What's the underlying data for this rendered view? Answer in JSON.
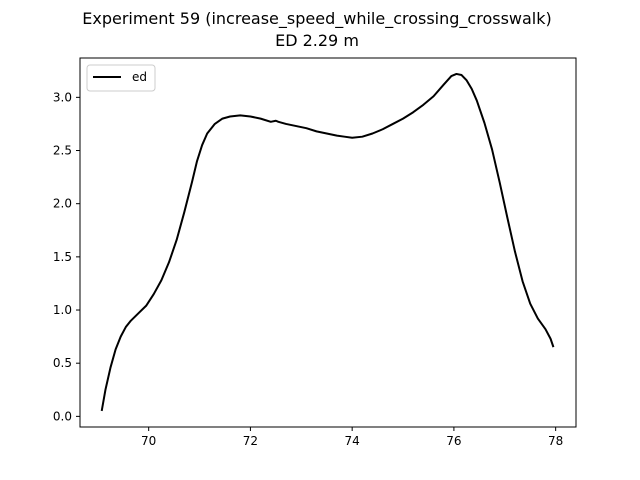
{
  "chart_data": {
    "type": "line",
    "title": "Experiment 59 (increase_speed_while_crossing_crosswalk)",
    "subtitle": "ED 2.29 m",
    "xlabel": "",
    "ylabel": "",
    "xlim": [
      68.65,
      78.4
    ],
    "ylim": [
      -0.1,
      3.37
    ],
    "xticks": [
      70,
      72,
      74,
      76,
      78
    ],
    "yticks": [
      0.0,
      0.5,
      1.0,
      1.5,
      2.0,
      2.5,
      3.0
    ],
    "xtick_labels": [
      "70",
      "72",
      "74",
      "76",
      "78"
    ],
    "ytick_labels": [
      "0.0",
      "0.5",
      "1.0",
      "1.5",
      "2.0",
      "2.5",
      "3.0"
    ],
    "grid": false,
    "legend": {
      "position": "top-left",
      "entries": [
        "ed"
      ]
    },
    "series": [
      {
        "name": "ed",
        "color": "#000000",
        "x": [
          69.08,
          69.15,
          69.25,
          69.35,
          69.45,
          69.55,
          69.65,
          69.8,
          69.95,
          70.1,
          70.25,
          70.4,
          70.55,
          70.7,
          70.85,
          70.95,
          71.05,
          71.15,
          71.3,
          71.45,
          71.6,
          71.8,
          72.0,
          72.2,
          72.4,
          72.5,
          72.55,
          72.7,
          72.9,
          73.1,
          73.3,
          73.5,
          73.7,
          73.85,
          74.0,
          74.2,
          74.4,
          74.6,
          74.8,
          75.0,
          75.2,
          75.4,
          75.6,
          75.8,
          75.95,
          76.05,
          76.15,
          76.25,
          76.35,
          76.45,
          76.6,
          76.75,
          76.9,
          77.05,
          77.2,
          77.35,
          77.5,
          77.65,
          77.8,
          77.9,
          77.95
        ],
        "y": [
          0.06,
          0.25,
          0.46,
          0.63,
          0.75,
          0.84,
          0.9,
          0.97,
          1.04,
          1.15,
          1.28,
          1.45,
          1.66,
          1.92,
          2.2,
          2.4,
          2.55,
          2.66,
          2.75,
          2.8,
          2.82,
          2.83,
          2.82,
          2.8,
          2.77,
          2.78,
          2.77,
          2.75,
          2.73,
          2.71,
          2.68,
          2.66,
          2.64,
          2.63,
          2.62,
          2.63,
          2.66,
          2.7,
          2.75,
          2.8,
          2.86,
          2.93,
          3.01,
          3.12,
          3.2,
          3.22,
          3.21,
          3.16,
          3.08,
          2.97,
          2.76,
          2.51,
          2.2,
          1.87,
          1.55,
          1.27,
          1.06,
          0.92,
          0.82,
          0.73,
          0.66
        ]
      }
    ]
  }
}
